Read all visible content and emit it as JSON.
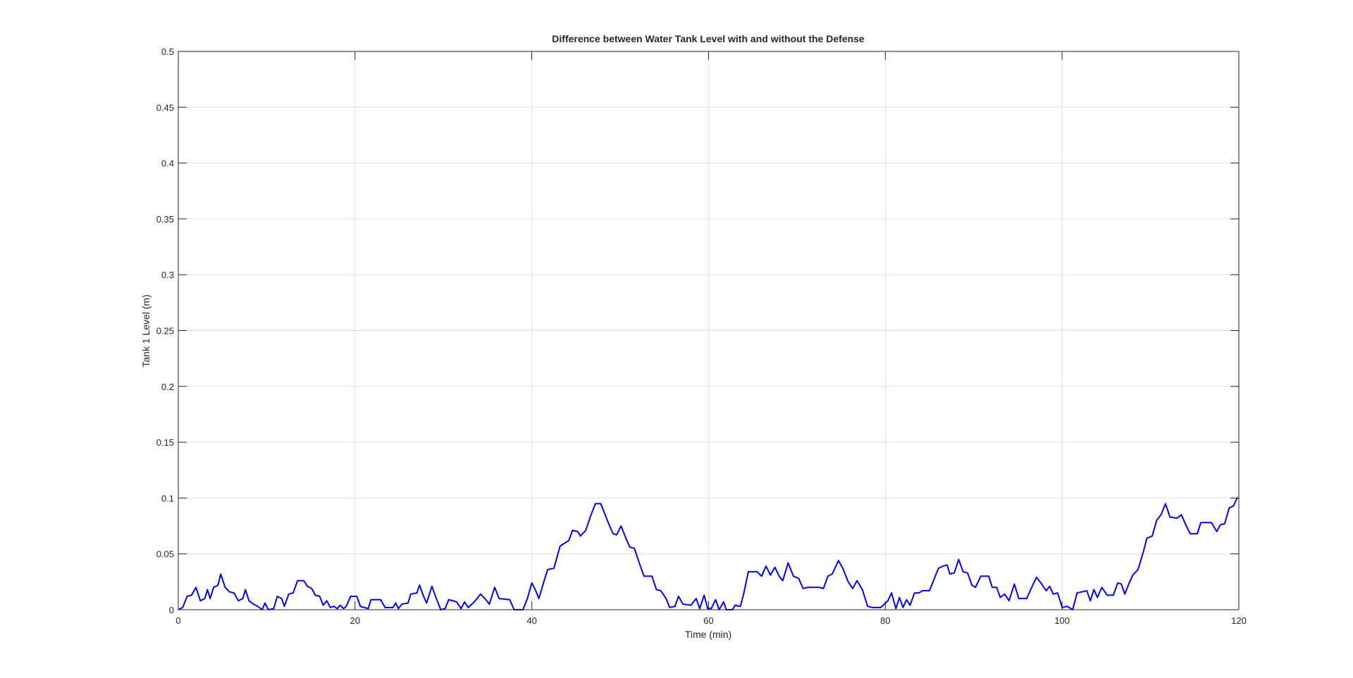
{
  "chart_data": {
    "type": "line",
    "title": "Difference between Water Tank Level with and without the Defense",
    "x_label": "Time (min)",
    "y_label": "Tank 1 Level (m)",
    "xlim": [
      0,
      120
    ],
    "xticks": [
      0,
      20,
      40,
      60,
      80,
      100,
      120
    ],
    "ylim": [
      0,
      0.5
    ],
    "yticks": [
      0,
      0.05,
      0.1,
      0.15,
      0.2,
      0.25,
      0.3,
      0.35,
      0.4,
      0.45,
      0.5
    ],
    "grid": true,
    "x": [
      0,
      0.5,
      1,
      1.5,
      2,
      2.5,
      3,
      3.3,
      3.6,
      4,
      4.5,
      4.8,
      5.3,
      5.8,
      6.3,
      6.8,
      7.3,
      7.6,
      8,
      8.5,
      9,
      9.5,
      9.8,
      10.2,
      10.8,
      11.2,
      11.7,
      12,
      12.5,
      13,
      13.5,
      14.2,
      14.6,
      15.1,
      15.5,
      16,
      16.4,
      16.8,
      17.2,
      17.6,
      18,
      18.3,
      18.7,
      19,
      19.5,
      20.2,
      20.6,
      21.5,
      21.8,
      22.9,
      23.4,
      24.3,
      24.6,
      24.9,
      25.3,
      26,
      26.3,
      27,
      27.3,
      27.7,
      28.1,
      28.7,
      29.1,
      29.7,
      30.2,
      30.6,
      31.5,
      32,
      32.4,
      32.8,
      33.5,
      34.2,
      34.8,
      35.2,
      35.8,
      36.3,
      37.5,
      38,
      39,
      39.5,
      40,
      40.4,
      40.8,
      41.4,
      41.8,
      42.5,
      43.2,
      43.8,
      44.2,
      44.6,
      45.2,
      45.5,
      46.1,
      46.7,
      47.2,
      47.8,
      48.2,
      48.8,
      49.2,
      49.6,
      50.1,
      50.7,
      51.1,
      51.6,
      52.2,
      52.7,
      53.6,
      54.1,
      54.6,
      55.2,
      55.6,
      56.2,
      56.6,
      57.1,
      58,
      58.6,
      59,
      59.5,
      59.9,
      60.3,
      60.8,
      61.2,
      61.7,
      62,
      62.7,
      63,
      63.6,
      64,
      64.5,
      65.5,
      66,
      66.5,
      67,
      67.5,
      68,
      68.4,
      69,
      69.6,
      70.2,
      70.7,
      71.2,
      72.5,
      73,
      73.5,
      74,
      74.7,
      75.2,
      75.8,
      76.3,
      76.8,
      77.4,
      78,
      78.5,
      79.5,
      80.3,
      80.7,
      81.2,
      81.6,
      82,
      82.4,
      82.8,
      83.3,
      83.8,
      84.2,
      85,
      85.6,
      86,
      86.5,
      87,
      87.3,
      87.8,
      88.3,
      88.8,
      89.3,
      89.8,
      90.2,
      90.8,
      91.7,
      92.1,
      92.6,
      93,
      93.5,
      94,
      94.6,
      95.1,
      96,
      96.5,
      97.1,
      97.6,
      98.2,
      98.6,
      99,
      99.5,
      100,
      100.6,
      101.2,
      101.7,
      102.8,
      103.2,
      103.6,
      104,
      104.5,
      105.1,
      105.8,
      106.3,
      106.7,
      107.1,
      107.6,
      108,
      108.6,
      109.2,
      109.6,
      110.2,
      110.7,
      111.2,
      111.7,
      112.2,
      113,
      113.5,
      114,
      114.5,
      115.3,
      115.7,
      116.9,
      117.5,
      117.9,
      118.4,
      118.9,
      119.4,
      119.8,
      120
    ],
    "series": [
      {
        "color": "#0000ff",
        "values": [
          0,
          0.002,
          0.012,
          0.013,
          0.02,
          0.008,
          0.01,
          0.018,
          0.01,
          0.02,
          0.022,
          0.032,
          0.02,
          0.016,
          0.015,
          0.008,
          0.01,
          0.018,
          0.008,
          0.005,
          0.003,
          0,
          0.006,
          0,
          0.001,
          0.012,
          0.01,
          0.003,
          0.014,
          0.015,
          0.026,
          0.026,
          0.021,
          0.019,
          0.013,
          0.012,
          0.004,
          0.008,
          0.002,
          0.003,
          0.001,
          0.004,
          0.001,
          0.003,
          0.012,
          0.012,
          0.003,
          0.001,
          0.009,
          0.009,
          0.002,
          0.002,
          0.006,
          0.001,
          0.005,
          0.006,
          0.014,
          0.015,
          0.022,
          0.013,
          0.006,
          0.021,
          0.012,
          0,
          0.001,
          0.009,
          0.007,
          0.001,
          0.007,
          0.002,
          0.007,
          0.014,
          0.009,
          0.005,
          0.02,
          0.01,
          0.009,
          0,
          0,
          0.01,
          0.024,
          0.018,
          0.01,
          0.026,
          0.036,
          0.037,
          0.057,
          0.06,
          0.062,
          0.071,
          0.07,
          0.066,
          0.071,
          0.085,
          0.095,
          0.095,
          0.087,
          0.075,
          0.068,
          0.067,
          0.075,
          0.063,
          0.056,
          0.055,
          0.041,
          0.03,
          0.03,
          0.018,
          0.017,
          0.01,
          0.002,
          0.003,
          0.012,
          0.005,
          0.004,
          0.01,
          0.001,
          0.013,
          0.001,
          0.001,
          0.009,
          0,
          0.007,
          0,
          0,
          0.004,
          0.003,
          0.015,
          0.034,
          0.034,
          0.03,
          0.039,
          0.031,
          0.038,
          0.03,
          0.026,
          0.042,
          0.03,
          0.028,
          0.019,
          0.02,
          0.02,
          0.019,
          0.03,
          0.032,
          0.044,
          0.037,
          0.025,
          0.019,
          0.026,
          0.018,
          0.003,
          0.002,
          0.002,
          0.008,
          0.015,
          0.001,
          0.011,
          0.002,
          0.009,
          0.004,
          0.015,
          0.015,
          0.017,
          0.017,
          0.029,
          0.037,
          0.039,
          0.04,
          0.032,
          0.033,
          0.045,
          0.034,
          0.033,
          0.022,
          0.02,
          0.03,
          0.03,
          0.02,
          0.02,
          0.011,
          0.014,
          0.008,
          0.023,
          0.01,
          0.01,
          0.019,
          0.029,
          0.024,
          0.017,
          0.021,
          0.014,
          0.015,
          0.002,
          0.003,
          0,
          0.015,
          0.017,
          0.008,
          0.018,
          0.011,
          0.02,
          0.013,
          0.013,
          0.024,
          0.023,
          0.014,
          0.024,
          0.031,
          0.036,
          0.052,
          0.064,
          0.066,
          0.08,
          0.085,
          0.095,
          0.083,
          0.082,
          0.085,
          0.076,
          0.068,
          0.068,
          0.078,
          0.078,
          0.07,
          0.076,
          0.077,
          0.091,
          0.093,
          0.1,
          0.1
        ]
      }
    ]
  }
}
